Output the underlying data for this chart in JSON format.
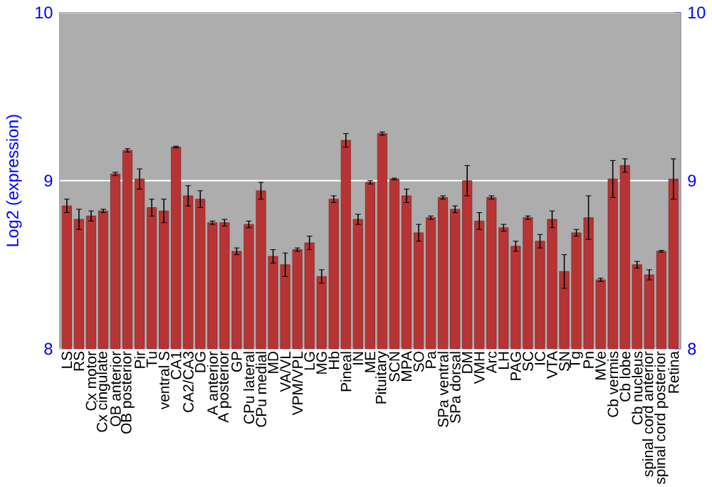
{
  "chart_data": {
    "type": "bar",
    "ylabel": "Log2 (expression)",
    "categories": [
      "LS",
      "RS",
      "Cx motor",
      "Cx cingulate",
      "OB anterior",
      "OB posterior",
      "Pir",
      "Tu",
      "ventral S",
      "CA1",
      "CA2/CA3",
      "DG",
      "A anterior",
      "A posterior",
      "GP",
      "CPu lateral",
      "CPu medial",
      "MD",
      "VA/VL",
      "VPM/VPL",
      "LG",
      "MG",
      "Hb",
      "Pineal",
      "IN",
      "ME",
      "Pituitary",
      "SCN",
      "MPA",
      "SO",
      "Pa",
      "SPa ventral",
      "SPa dorsal",
      "DM",
      "VMH",
      "Arc",
      "LH",
      "PAG",
      "SC",
      "IC",
      "VTA",
      "SN",
      "Tg",
      "Pn",
      "MVe",
      "Cb vermis",
      "Cb lobe",
      "Cb nucleus",
      "spinal cord anterior",
      "spinal cord posterior",
      "Retina"
    ],
    "values": [
      8.85,
      8.77,
      8.79,
      8.82,
      9.04,
      9.18,
      9.01,
      8.84,
      8.82,
      9.2,
      8.91,
      8.89,
      8.75,
      8.75,
      8.58,
      8.74,
      8.94,
      8.55,
      8.5,
      8.59,
      8.63,
      8.43,
      8.89,
      9.24,
      8.77,
      8.99,
      9.28,
      9.01,
      8.91,
      8.69,
      8.78,
      8.9,
      8.83,
      9.0,
      8.76,
      8.9,
      8.72,
      8.61,
      8.78,
      8.64,
      8.77,
      8.46,
      8.69,
      8.78,
      8.41,
      9.01,
      9.09,
      8.5,
      8.44,
      8.58,
      9.01
    ],
    "errors": [
      0.04,
      0.06,
      0.03,
      0.01,
      0.01,
      0.01,
      0.06,
      0.05,
      0.07,
      0.005,
      0.06,
      0.05,
      0.01,
      0.02,
      0.02,
      0.02,
      0.05,
      0.04,
      0.07,
      0.01,
      0.04,
      0.04,
      0.02,
      0.04,
      0.03,
      0.01,
      0.01,
      0.005,
      0.04,
      0.05,
      0.01,
      0.01,
      0.02,
      0.09,
      0.05,
      0.01,
      0.02,
      0.03,
      0.01,
      0.04,
      0.05,
      0.1,
      0.02,
      0.13,
      0.01,
      0.11,
      0.04,
      0.02,
      0.03,
      0.005,
      0.12
    ],
    "color": "#b83434",
    "ylim": [
      8,
      10
    ],
    "yticks": [
      8,
      9,
      10
    ],
    "y2lim": [
      8,
      10
    ],
    "y2ticks": [
      8,
      9,
      10
    ],
    "grid": "y"
  }
}
